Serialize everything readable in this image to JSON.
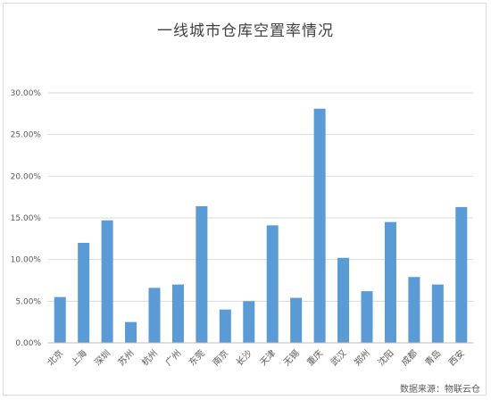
{
  "chart_data": {
    "type": "bar",
    "title": "一线城市仓库空置率情况",
    "xlabel": "",
    "ylabel": "",
    "categories": [
      "北京",
      "上海",
      "深圳",
      "苏州",
      "杭州",
      "广州",
      "东莞",
      "南京",
      "长沙",
      "天津",
      "无锡",
      "重庆",
      "武汉",
      "郑州",
      "沈阳",
      "成都",
      "青岛",
      "西安"
    ],
    "values": [
      5.5,
      12.0,
      14.7,
      2.5,
      6.6,
      7.0,
      16.4,
      4.0,
      5.0,
      14.1,
      5.4,
      28.1,
      10.2,
      6.2,
      14.5,
      7.9,
      7.0,
      16.3
    ],
    "ylim": [
      0,
      30
    ],
    "yticks": [
      "0.00%",
      "5.00%",
      "10.00%",
      "15.00%",
      "20.00%",
      "25.00%",
      "30.00%"
    ],
    "ytick_values": [
      0,
      5,
      10,
      15,
      20,
      25,
      30
    ],
    "grid": true,
    "legend": "none",
    "bar_color": "#5b9bd5"
  },
  "source_text": "数据来源：物联云仓"
}
